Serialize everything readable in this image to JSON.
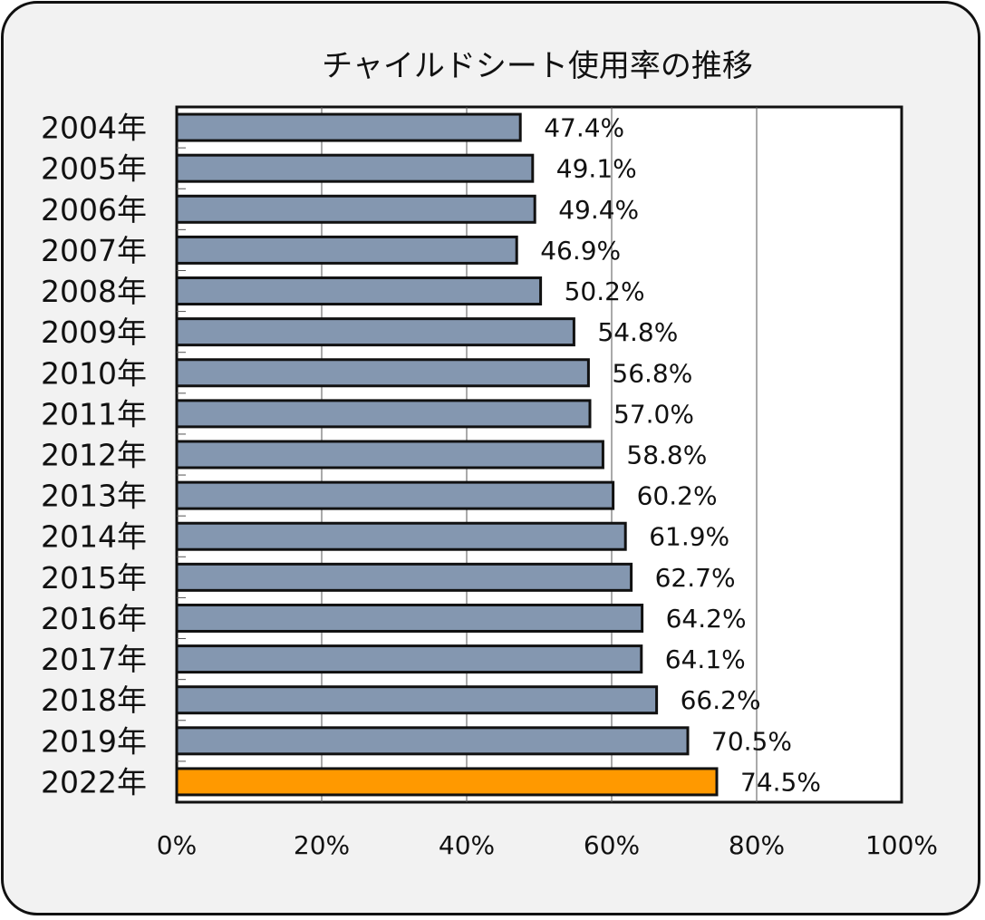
{
  "chart_data": {
    "type": "bar",
    "orientation": "horizontal",
    "title": "チャイルドシート使用率の推移",
    "xlabel": "",
    "ylabel": "",
    "xlim": [
      0,
      100
    ],
    "grid": true,
    "categories": [
      "2004年",
      "2005年",
      "2006年",
      "2007年",
      "2008年",
      "2009年",
      "2010年",
      "2011年",
      "2012年",
      "2013年",
      "2014年",
      "2015年",
      "2016年",
      "2017年",
      "2018年",
      "2019年",
      "2022年"
    ],
    "values": [
      47.4,
      49.1,
      49.4,
      46.9,
      50.2,
      54.8,
      56.8,
      57.0,
      58.8,
      60.2,
      61.9,
      62.7,
      64.2,
      64.1,
      66.2,
      70.5,
      74.5
    ],
    "value_labels": [
      "47.4%",
      "49.1%",
      "49.4%",
      "46.9%",
      "50.2%",
      "54.8%",
      "56.8%",
      "57.0%",
      "58.8%",
      "60.2%",
      "61.9%",
      "62.7%",
      "64.2%",
      "64.1%",
      "66.2%",
      "70.5%",
      "74.5%"
    ],
    "x_ticks": [
      "0%",
      "20%",
      "40%",
      "60%",
      "80%",
      "100%"
    ],
    "colors": {
      "bar": "#8497b0",
      "highlight_bar": "#ff9900",
      "bar_border": "#111111",
      "plot_background": "#ffffff",
      "frame_background": "#f2f2f2"
    },
    "highlight_category": "2022年"
  }
}
